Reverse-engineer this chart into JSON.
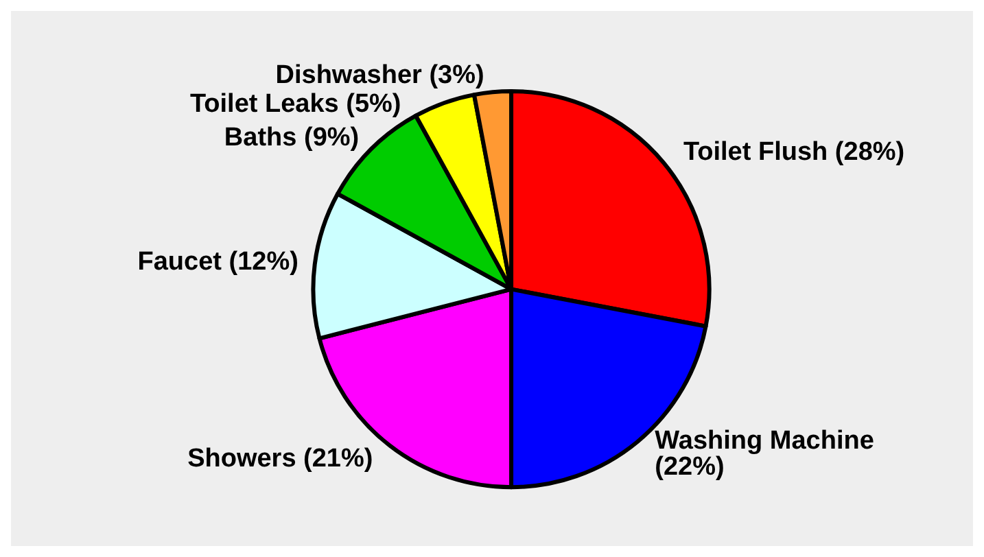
{
  "chart_data": {
    "type": "pie",
    "categories": [
      "Toilet Flush",
      "Washing Machine",
      "Showers",
      "Faucet",
      "Baths",
      "Toilet Leaks",
      "Dishwasher"
    ],
    "values": [
      28,
      22,
      21,
      12,
      9,
      5,
      3
    ],
    "value_labels": [
      "(28%)",
      "(22%)",
      "(21%)",
      "(12%)",
      "(9%)",
      "(5%)",
      "(3%)"
    ],
    "colors": [
      "#ff0000",
      "#0000ff",
      "#ff00ff",
      "#ccffff",
      "#00cc00",
      "#ffff00",
      "#ff9933"
    ],
    "legend": false
  }
}
